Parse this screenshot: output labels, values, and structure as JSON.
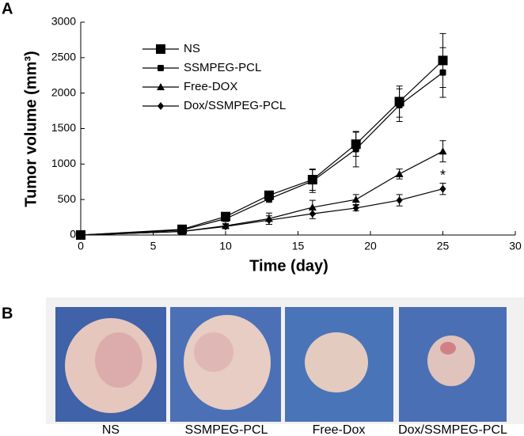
{
  "panel_a_label": "A",
  "panel_b_label": "B",
  "chart_data": {
    "type": "line",
    "x_label": "Time (day)",
    "y_label": "Tumor volume (mm³)",
    "x": [
      0,
      7,
      10,
      13,
      16,
      19,
      22,
      25
    ],
    "series": [
      {
        "name": "NS",
        "color": "#000000",
        "marker": "square",
        "values": [
          0,
          80,
          260,
          560,
          780,
          1280,
          1880,
          2460
        ],
        "errors": [
          0,
          20,
          40,
          50,
          150,
          170,
          220,
          380
        ]
      },
      {
        "name": "SSMPEG-PCL",
        "color": "#000000",
        "marker": "small-square",
        "values": [
          0,
          70,
          230,
          510,
          760,
          1210,
          1830,
          2290
        ],
        "errors": [
          0,
          20,
          40,
          50,
          160,
          250,
          230,
          350
        ]
      },
      {
        "name": "Free-DOX",
        "color": "#000000",
        "marker": "triangle",
        "values": [
          0,
          50,
          130,
          230,
          390,
          500,
          860,
          1180
        ],
        "errors": [
          0,
          10,
          30,
          80,
          100,
          70,
          70,
          150
        ]
      },
      {
        "name": "Dox/SSMPEG-PCL",
        "color": "#000000",
        "marker": "diamond",
        "values": [
          0,
          50,
          120,
          210,
          300,
          380,
          490,
          650
        ],
        "errors": [
          0,
          10,
          30,
          60,
          70,
          40,
          80,
          80
        ]
      }
    ],
    "xlim": [
      0,
      30
    ],
    "xticks": [
      0,
      5,
      10,
      15,
      20,
      25,
      30
    ],
    "ylim": [
      0,
      3000
    ],
    "yticks": [
      0,
      500,
      1000,
      1500,
      2000,
      2500,
      3000
    ],
    "annotations": [
      {
        "text": "*",
        "x": 25,
        "y": 830
      }
    ],
    "legend": "upper-left"
  },
  "photo_labels": [
    "NS",
    "SSMPEG-PCL",
    "Free-Dox",
    "Dox/SSMPEG-PCL"
  ]
}
